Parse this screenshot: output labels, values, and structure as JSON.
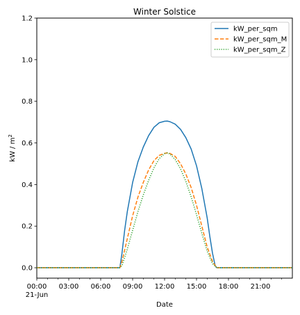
{
  "chart_data": {
    "type": "line",
    "title": "Winter Solstice",
    "xlabel": "Date",
    "ylabel_prefix": "kW / m",
    "ylabel_sup": "2",
    "x_axis": {
      "range_hours": [
        0,
        24
      ],
      "ticks": [
        {
          "hour": 0,
          "label": "00:00",
          "sublabel": "21-Jun"
        },
        {
          "hour": 3,
          "label": "03:00"
        },
        {
          "hour": 6,
          "label": "06:00"
        },
        {
          "hour": 9,
          "label": "09:00"
        },
        {
          "hour": 12,
          "label": "12:00"
        },
        {
          "hour": 15,
          "label": "15:00"
        },
        {
          "hour": 18,
          "label": "18:00"
        },
        {
          "hour": 21,
          "label": "21:00"
        }
      ]
    },
    "y_axis": {
      "ylim": [
        -0.05,
        1.2
      ],
      "ticks": [
        0.0,
        0.2,
        0.4,
        0.6,
        0.8,
        1.0,
        1.2
      ],
      "tick_labels": [
        "0.0",
        "0.2",
        "0.4",
        "0.6",
        "0.8",
        "1.0",
        "1.2"
      ]
    },
    "grid": false,
    "legend_position": "top-right",
    "series": [
      {
        "name": "kW_per_sqm",
        "color": "#1f77b4",
        "style": "solid",
        "x": [
          0,
          3,
          6,
          7.8,
          8.0,
          8.25,
          8.5,
          9,
          9.5,
          10,
          10.5,
          11,
          11.5,
          12,
          12.25,
          12.5,
          13,
          13.5,
          14,
          14.5,
          15,
          15.5,
          16,
          16.25,
          16.5,
          16.75,
          16.9,
          18,
          21,
          24
        ],
        "y": [
          0,
          0,
          0,
          0,
          0.07,
          0.18,
          0.27,
          0.41,
          0.51,
          0.58,
          0.635,
          0.675,
          0.697,
          0.704,
          0.705,
          0.702,
          0.69,
          0.665,
          0.625,
          0.57,
          0.49,
          0.38,
          0.24,
          0.15,
          0.07,
          0.01,
          0,
          0,
          0,
          0
        ]
      },
      {
        "name": "kW_per_sqm_M",
        "color": "#ff7f0e",
        "style": "dashed",
        "x": [
          0,
          3,
          6,
          7.8,
          8.0,
          8.5,
          9,
          9.5,
          10,
          10.5,
          11,
          11.5,
          12,
          12.25,
          12.5,
          13,
          13.5,
          14,
          14.5,
          15,
          15.5,
          16,
          16.5,
          16.9,
          18,
          21,
          24
        ],
        "y": [
          0,
          0,
          0,
          0,
          0.03,
          0.14,
          0.25,
          0.34,
          0.41,
          0.47,
          0.515,
          0.54,
          0.55,
          0.552,
          0.55,
          0.535,
          0.5,
          0.45,
          0.385,
          0.3,
          0.2,
          0.1,
          0.03,
          0,
          0,
          0,
          0
        ]
      },
      {
        "name": "kW_per_sqm_Z",
        "color": "#2ca02c",
        "style": "dotted",
        "x": [
          0,
          3,
          6,
          7.8,
          8.0,
          8.5,
          9,
          9.5,
          10,
          10.5,
          11,
          11.5,
          12,
          12.25,
          12.5,
          13,
          13.5,
          14,
          14.5,
          15,
          15.5,
          16,
          16.5,
          16.9,
          18,
          21,
          24
        ],
        "y": [
          0,
          0,
          0,
          0,
          0.01,
          0.09,
          0.18,
          0.27,
          0.35,
          0.42,
          0.48,
          0.525,
          0.548,
          0.552,
          0.547,
          0.52,
          0.475,
          0.415,
          0.34,
          0.255,
          0.165,
          0.08,
          0.02,
          0,
          0,
          0,
          0
        ]
      }
    ]
  }
}
